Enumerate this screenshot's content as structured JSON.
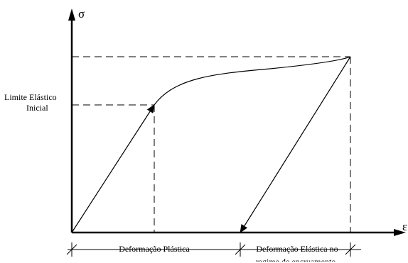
{
  "diagram": {
    "y_axis_label": "σ",
    "x_axis_label": "ε",
    "yield_label_line1": "Limite Elástico",
    "yield_label_line2": "Inicial",
    "plastic_label": "Deformação Plástica",
    "elastic_label_line1": "Deformação Elástica no",
    "elastic_label_line2": "regime de encruamento"
  }
}
